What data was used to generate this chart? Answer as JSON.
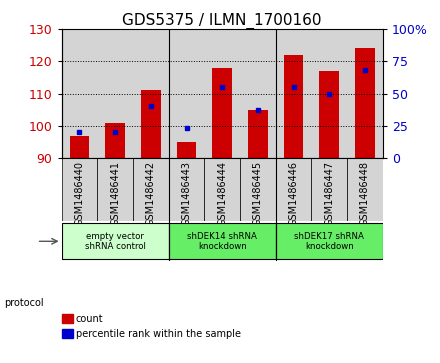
{
  "title": "GDS5375 / ILMN_1700160",
  "samples": [
    "GSM1486440",
    "GSM1486441",
    "GSM1486442",
    "GSM1486443",
    "GSM1486444",
    "GSM1486445",
    "GSM1486446",
    "GSM1486447",
    "GSM1486448"
  ],
  "count_values": [
    97,
    101,
    111,
    95,
    118,
    105,
    122,
    117,
    124
  ],
  "percentile_values": [
    20,
    20,
    40,
    23,
    55,
    37,
    55,
    50,
    68
  ],
  "ylim_left": [
    90,
    130
  ],
  "ylim_right": [
    0,
    100
  ],
  "yticks_left": [
    90,
    100,
    110,
    120,
    130
  ],
  "yticks_right": [
    0,
    25,
    50,
    75,
    100
  ],
  "bar_color": "#cc0000",
  "point_color": "#0000cc",
  "bar_bottom": 90,
  "protocols": [
    {
      "label": "empty vector\nshRNA control",
      "start": 0,
      "end": 3,
      "color": "#ccffcc"
    },
    {
      "label": "shDEK14 shRNA\nknockdown",
      "start": 3,
      "end": 6,
      "color": "#66ee66"
    },
    {
      "label": "shDEK17 shRNA\nknockdown",
      "start": 6,
      "end": 9,
      "color": "#66ee66"
    }
  ],
  "protocol_label": "protocol",
  "legend_count_label": "count",
  "legend_pct_label": "percentile rank within the sample",
  "title_fontsize": 11,
  "tick_fontsize": 7,
  "col_bg_color": "#d4d4d4",
  "plot_bg_color": "#ffffff"
}
